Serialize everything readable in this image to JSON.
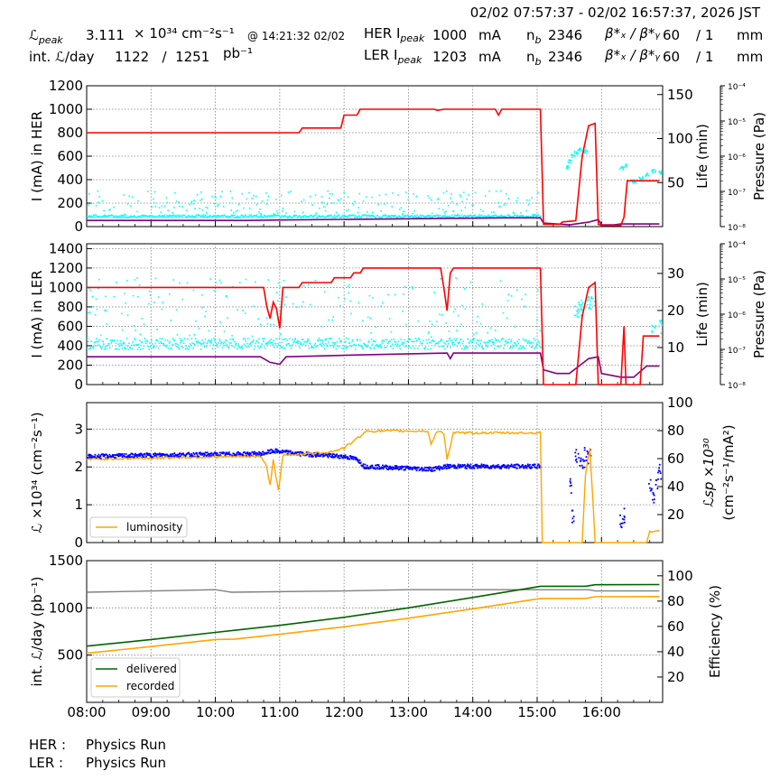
{
  "header": {
    "range": "02/02 07:57:37 - 02/02 16:57:37, 2026 JST",
    "lpeak_label": "ℒ",
    "lpeak_sub": "peak",
    "lpeak_value": "3.111",
    "lpeak_units": "× 10³⁴ cm⁻²s⁻¹",
    "lpeak_time": "@ 14:21:32 02/02",
    "intl_label": "int. ℒ/day",
    "intl_value": "1122   /  1251",
    "intl_units": "pb⁻¹",
    "her_label": "HER I",
    "her_sub": "peak",
    "her_value": "1000",
    "ler_label": "LER I",
    "ler_sub": "peak",
    "ler_value": "1203",
    "ma": "mA",
    "nb_label": "n",
    "nb_sub": "b",
    "her_nb": "2346",
    "ler_nb": "2346",
    "beta_label": "β*ₓ / β*ᵧ",
    "beta_x": "60",
    "beta_y": "/ 1",
    "mm": "mm"
  },
  "footer": {
    "her_label": "HER :",
    "her_status": "Physics Run",
    "ler_label": "LER :",
    "ler_status": "Physics Run"
  },
  "colors": {
    "current": "#ff0000",
    "life": "#800080",
    "pressure": "#00ffff",
    "luminosity": "#ffa500",
    "specific": "#0000ff",
    "delivered": "#006400",
    "recorded": "#ffa500",
    "efficiency": "#808080",
    "grid": "#808080"
  },
  "chart_data": [
    {
      "type": "line",
      "name": "HER",
      "ylabel": "I (mA) in HER",
      "y2label": "Life (min)",
      "y3label": "Pressure (Pa)",
      "ylim": [
        0,
        1200
      ],
      "yticks": [
        0,
        200,
        400,
        600,
        800,
        1000,
        1200
      ],
      "y2lim": [
        0,
        160
      ],
      "y2ticks": [
        50,
        100,
        150
      ],
      "y3ticks": [
        "10⁻⁸",
        "10⁻⁷",
        "10⁻⁶",
        "10⁻⁵",
        "10⁻⁴"
      ],
      "current": [
        [
          8.0,
          800
        ],
        [
          11.3,
          800
        ],
        [
          11.35,
          840
        ],
        [
          11.95,
          840
        ],
        [
          12.0,
          950
        ],
        [
          12.2,
          950
        ],
        [
          12.25,
          1000
        ],
        [
          13.4,
          1000
        ],
        [
          13.45,
          990
        ],
        [
          13.55,
          1000
        ],
        [
          14.35,
          1000
        ],
        [
          14.4,
          950
        ],
        [
          14.45,
          1000
        ],
        [
          15.05,
          1000
        ],
        [
          15.1,
          20
        ],
        [
          15.35,
          20
        ],
        [
          15.4,
          40
        ],
        [
          15.6,
          50
        ],
        [
          15.7,
          600
        ],
        [
          15.8,
          860
        ],
        [
          15.9,
          880
        ],
        [
          15.95,
          20
        ],
        [
          16.0,
          10
        ],
        [
          16.3,
          10
        ],
        [
          16.35,
          80
        ],
        [
          16.4,
          390
        ],
        [
          16.9,
          390
        ]
      ],
      "life": [
        [
          8.0,
          7
        ],
        [
          10.5,
          7
        ],
        [
          11.0,
          7.5
        ],
        [
          14.5,
          10
        ],
        [
          15.05,
          10
        ],
        [
          15.1,
          4
        ],
        [
          15.5,
          2
        ],
        [
          15.6,
          3
        ],
        [
          15.8,
          5
        ],
        [
          15.95,
          8
        ],
        [
          16.0,
          2
        ],
        [
          16.2,
          2
        ],
        [
          16.3,
          3
        ],
        [
          16.9,
          3
        ]
      ],
      "pressure_band": [
        [
          8.0,
          12.5,
          15.05,
          29
        ]
      ],
      "pressure_points": [
        [
          15.45,
          68
        ],
        [
          15.5,
          75
        ],
        [
          15.55,
          81
        ],
        [
          15.6,
          85
        ],
        [
          15.65,
          88
        ],
        [
          15.75,
          86
        ],
        [
          16.3,
          67
        ],
        [
          16.35,
          70
        ],
        [
          16.5,
          52
        ],
        [
          16.6,
          56
        ],
        [
          16.7,
          60
        ],
        [
          16.8,
          64
        ],
        [
          16.9,
          62
        ]
      ]
    },
    {
      "type": "line",
      "name": "LER",
      "ylabel": "I (mA) in LER",
      "y2label": "Life (min)",
      "y3label": "Pressure (Pa)",
      "ylim": [
        0,
        1450
      ],
      "yticks": [
        0,
        200,
        400,
        600,
        800,
        1000,
        1200,
        1400
      ],
      "y2lim": [
        0,
        38
      ],
      "y2ticks": [
        10,
        20,
        30
      ],
      "y3ticks": [
        "10⁻⁸",
        "10⁻⁷",
        "10⁻⁶",
        "10⁻⁵",
        "10⁻⁴"
      ],
      "current": [
        [
          8.0,
          1000
        ],
        [
          10.75,
          1000
        ],
        [
          10.8,
          800
        ],
        [
          10.85,
          680
        ],
        [
          10.9,
          850
        ],
        [
          10.95,
          780
        ],
        [
          11.0,
          580
        ],
        [
          11.05,
          1000
        ],
        [
          11.3,
          1000
        ],
        [
          11.35,
          1050
        ],
        [
          11.8,
          1050
        ],
        [
          11.85,
          1100
        ],
        [
          12.1,
          1100
        ],
        [
          12.15,
          1150
        ],
        [
          12.25,
          1150
        ],
        [
          12.3,
          1200
        ],
        [
          13.5,
          1200
        ],
        [
          13.55,
          1000
        ],
        [
          13.6,
          760
        ],
        [
          13.65,
          1150
        ],
        [
          13.7,
          1200
        ],
        [
          15.05,
          1200
        ],
        [
          15.1,
          0
        ],
        [
          15.6,
          0
        ],
        [
          15.7,
          700
        ],
        [
          15.8,
          1000
        ],
        [
          15.9,
          1050
        ],
        [
          15.95,
          0
        ],
        [
          16.3,
          0
        ],
        [
          16.35,
          600
        ],
        [
          16.38,
          0
        ],
        [
          16.6,
          0
        ],
        [
          16.65,
          500
        ],
        [
          16.9,
          500
        ]
      ],
      "life": [
        [
          8.0,
          7.5
        ],
        [
          10.7,
          7.5
        ],
        [
          10.85,
          6
        ],
        [
          11.0,
          5.5
        ],
        [
          11.1,
          7.5
        ],
        [
          12.2,
          8
        ],
        [
          13.6,
          8.5
        ],
        [
          13.65,
          7
        ],
        [
          13.7,
          8.5
        ],
        [
          15.05,
          8.5
        ],
        [
          15.1,
          4
        ],
        [
          15.3,
          3
        ],
        [
          15.5,
          3
        ],
        [
          15.8,
          7
        ],
        [
          15.95,
          7.5
        ],
        [
          16.0,
          3
        ],
        [
          16.3,
          2
        ],
        [
          16.5,
          2
        ],
        [
          16.7,
          5
        ],
        [
          16.9,
          5
        ]
      ],
      "pressure_band": [
        [
          8.0,
          11.2,
          15.05,
          18
        ]
      ],
      "pressure_points": [
        [
          15.6,
          20
        ],
        [
          15.65,
          21
        ],
        [
          15.7,
          20.5
        ],
        [
          15.8,
          22
        ],
        [
          15.85,
          22.5
        ],
        [
          16.8,
          15
        ],
        [
          16.9,
          16
        ]
      ]
    },
    {
      "type": "line",
      "name": "Luminosity",
      "ylabel": "ℒ ×10³⁴ (cm⁻²s⁻¹)",
      "y2label": "ℒsp ×10³⁰",
      "y2label_units": "(cm⁻²s⁻¹/mA²)",
      "ylim": [
        0,
        3.7
      ],
      "yticks": [
        0,
        1,
        2,
        3
      ],
      "y2lim": [
        0,
        100
      ],
      "y2ticks": [
        20,
        40,
        60,
        80,
        100
      ],
      "legend": "luminosity",
      "luminosity": [
        [
          8.0,
          2.2
        ],
        [
          9.5,
          2.25
        ],
        [
          10.7,
          2.28
        ],
        [
          10.8,
          2.0
        ],
        [
          10.85,
          1.5
        ],
        [
          10.9,
          2.2
        ],
        [
          10.98,
          1.35
        ],
        [
          11.05,
          2.3
        ],
        [
          11.8,
          2.4
        ],
        [
          12.0,
          2.5
        ],
        [
          12.2,
          2.75
        ],
        [
          12.35,
          2.95
        ],
        [
          13.3,
          2.95
        ],
        [
          13.35,
          2.6
        ],
        [
          13.45,
          2.95
        ],
        [
          13.55,
          2.9
        ],
        [
          13.6,
          2.2
        ],
        [
          13.7,
          2.9
        ],
        [
          15.05,
          2.9
        ],
        [
          15.08,
          0
        ],
        [
          15.7,
          0
        ],
        [
          15.75,
          1.8
        ],
        [
          15.82,
          2.5
        ],
        [
          15.87,
          1.0
        ],
        [
          15.9,
          0
        ],
        [
          16.7,
          0
        ],
        [
          16.75,
          0.3
        ],
        [
          16.9,
          0.3
        ]
      ],
      "specific": [
        [
          8.0,
          62
        ],
        [
          9.0,
          63
        ],
        [
          10.7,
          64
        ],
        [
          10.9,
          66
        ],
        [
          11.3,
          64
        ],
        [
          12.0,
          62
        ],
        [
          12.2,
          60
        ],
        [
          12.3,
          55
        ],
        [
          13.35,
          53
        ],
        [
          13.6,
          55
        ],
        [
          13.7,
          55
        ],
        [
          15.05,
          55
        ]
      ],
      "specific_points": [
        [
          15.6,
          62
        ],
        [
          15.65,
          60
        ],
        [
          15.7,
          58
        ],
        [
          15.75,
          65
        ],
        [
          15.8,
          62
        ],
        [
          15.5,
          40
        ],
        [
          15.55,
          20
        ],
        [
          16.75,
          40
        ],
        [
          16.8,
          35
        ],
        [
          16.85,
          45
        ],
        [
          16.9,
          52
        ],
        [
          16.3,
          15
        ],
        [
          16.33,
          20
        ]
      ]
    },
    {
      "type": "line",
      "name": "Integrated",
      "ylabel": "int. ℒ/day (pb⁻¹)",
      "y2label": "Efficiency (%)",
      "ylim": [
        0,
        1500
      ],
      "yticks": [
        500,
        1000,
        1500
      ],
      "y2lim": [
        0,
        112
      ],
      "y2ticks": [
        20,
        40,
        60,
        80,
        100
      ],
      "xticks": [
        "08:00",
        "09:00",
        "10:00",
        "11:00",
        "12:00",
        "13:00",
        "14:00",
        "15:00",
        "16:00"
      ],
      "xlim": [
        8.0,
        16.95
      ],
      "legend": [
        "delivered",
        "recorded"
      ],
      "delivered": [
        [
          8.0,
          595
        ],
        [
          9.0,
          665
        ],
        [
          10.0,
          740
        ],
        [
          11.0,
          815
        ],
        [
          12.0,
          900
        ],
        [
          13.0,
          1000
        ],
        [
          14.0,
          1110
        ],
        [
          15.05,
          1229
        ],
        [
          15.75,
          1229
        ],
        [
          15.9,
          1245
        ],
        [
          16.9,
          1247
        ]
      ],
      "recorded": [
        [
          8.0,
          520
        ],
        [
          9.0,
          590
        ],
        [
          10.0,
          665
        ],
        [
          10.3,
          670
        ],
        [
          11.0,
          720
        ],
        [
          12.0,
          800
        ],
        [
          13.0,
          890
        ],
        [
          14.0,
          990
        ],
        [
          15.05,
          1100
        ],
        [
          15.75,
          1100
        ],
        [
          15.9,
          1118
        ],
        [
          16.9,
          1120
        ]
      ],
      "efficiency": [
        [
          8.0,
          87
        ],
        [
          10.0,
          89
        ],
        [
          10.25,
          87
        ],
        [
          12.0,
          88
        ],
        [
          13.0,
          89
        ],
        [
          15.05,
          89
        ],
        [
          15.8,
          89
        ],
        [
          15.9,
          88
        ],
        [
          16.9,
          88
        ]
      ]
    }
  ]
}
